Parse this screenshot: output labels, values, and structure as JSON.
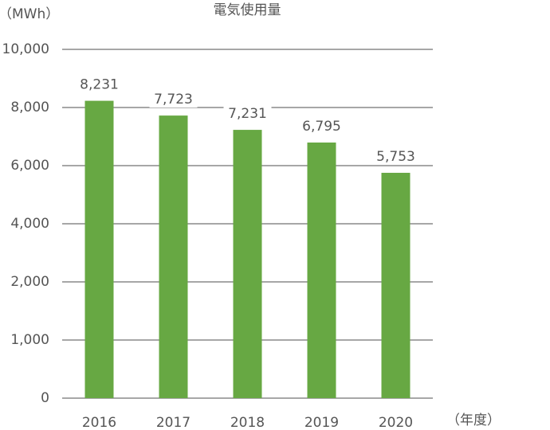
{
  "chart_data": {
    "type": "bar",
    "title": "電気使用量",
    "y_label": "（MWh）",
    "x_label": "（年度）",
    "categories": [
      "2016",
      "2017",
      "2018",
      "2019",
      "2020"
    ],
    "values": [
      8231,
      7723,
      7231,
      6795,
      5753
    ],
    "value_labels": [
      "8,231",
      "7,723",
      "7,231",
      "6,795",
      "5,753"
    ],
    "color": "#67a843",
    "ylim": [
      0,
      10000
    ],
    "yticks": [
      0,
      {
        "value": 1000,
        "label": "1,000"
      },
      {
        "value": 2000,
        "label": "2,000"
      },
      {
        "value": 4000,
        "label": "4,000"
      },
      {
        "value": 6000,
        "label": "6,000"
      },
      {
        "value": 8000,
        "label": "8,000"
      },
      {
        "value": 10000,
        "label": "10,000"
      }
    ],
    "grid": true
  }
}
